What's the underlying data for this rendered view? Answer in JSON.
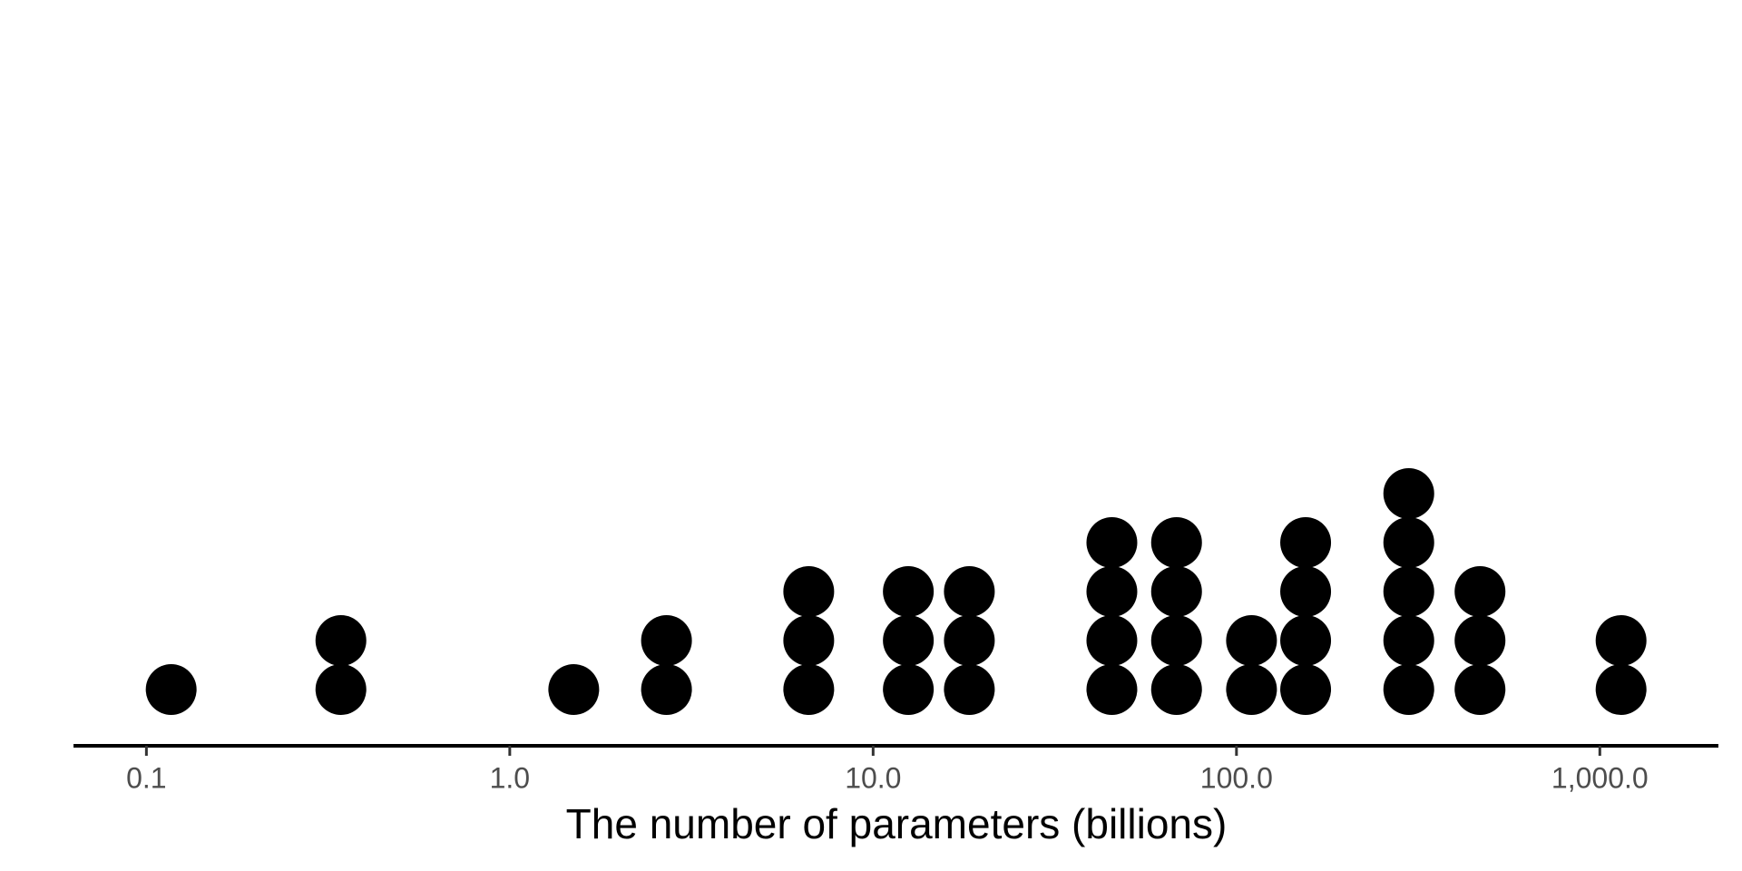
{
  "chart_data": {
    "type": "dotplot",
    "x_label": "The number of parameters (billions)",
    "x": [
      0.117,
      0.343,
      1.5,
      2.7,
      6.65,
      12.5,
      18.4,
      45.4,
      68.4,
      110,
      155,
      298,
      468,
      1144
    ],
    "values": [
      1,
      2,
      1,
      2,
      3,
      3,
      3,
      4,
      4,
      2,
      4,
      5,
      3,
      2
    ],
    "color": "#000000",
    "xlog": true,
    "xlim": [
      0.063,
      2120
    ],
    "xticks": [
      0.1,
      {
        "value": 1,
        "label": "1.0"
      },
      {
        "value": 10,
        "label": "10.0"
      },
      {
        "value": 100,
        "label": "100.0"
      },
      {
        "value": 1000,
        "label": "1,000.0"
      }
    ]
  }
}
